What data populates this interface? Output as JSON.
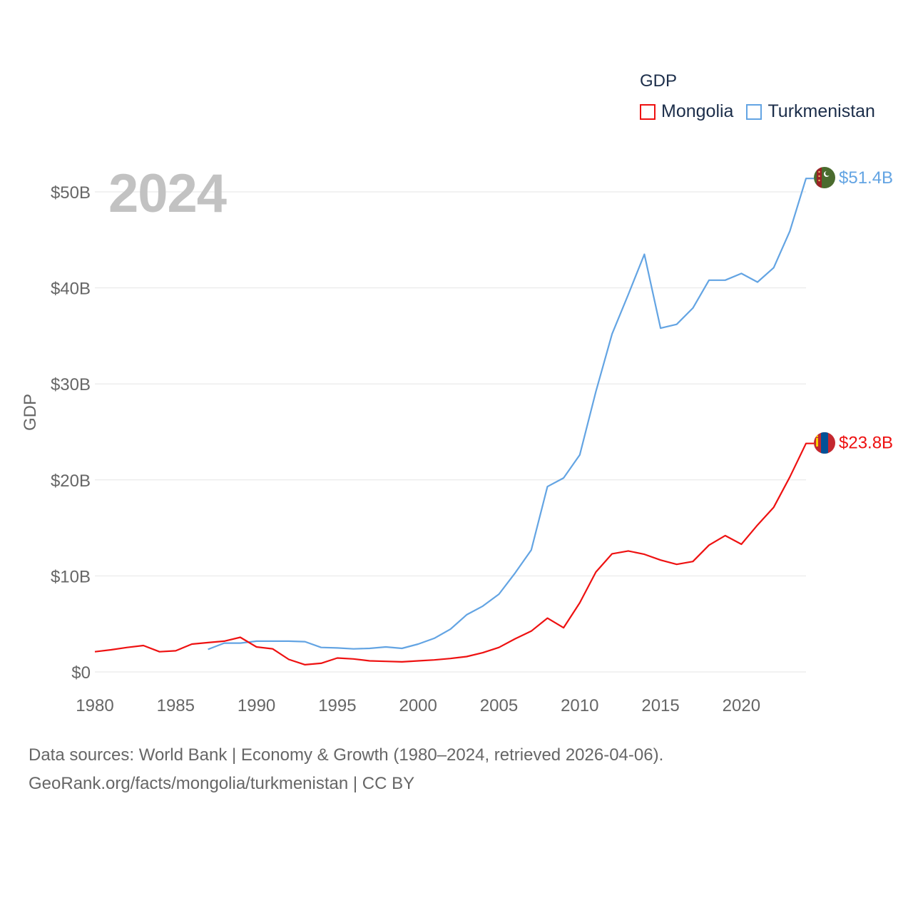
{
  "legend": {
    "title": "GDP",
    "items": [
      {
        "name": "Mongolia",
        "color": "#ee1111"
      },
      {
        "name": "Turkmenistan",
        "color": "#63a4e3"
      }
    ]
  },
  "year_label": "2024",
  "source": {
    "line1": "Data sources: World Bank | Economy & Growth (1980–2024, retrieved 2026-04-06).",
    "line2": "GeoRank.org/facts/mongolia/turkmenistan | CC BY"
  },
  "chart_data": {
    "type": "line",
    "title": "GDP",
    "xlabel": "",
    "ylabel": "GDP",
    "xlim": [
      1980,
      2024
    ],
    "ylim": [
      0,
      50
    ],
    "y_unit": "billion USD",
    "grid": true,
    "legend_position": "top-right",
    "x_ticks": [
      1980,
      1985,
      1990,
      1995,
      2000,
      2005,
      2010,
      2015,
      2020
    ],
    "x_tick_labels": [
      "1980",
      "1985",
      "1990",
      "1995",
      "2000",
      "2005",
      "2010",
      "2015",
      "2020"
    ],
    "y_ticks": [
      0,
      10,
      20,
      30,
      40,
      50
    ],
    "y_tick_labels": [
      "$0",
      "$10B",
      "$20B",
      "$30B",
      "$40B",
      "$50B"
    ],
    "series": [
      {
        "name": "Mongolia",
        "color": "#ee1111",
        "end_label": "$23.8B",
        "x": [
          1980,
          1981,
          1982,
          1983,
          1984,
          1985,
          1986,
          1987,
          1988,
          1989,
          1990,
          1991,
          1992,
          1993,
          1994,
          1995,
          1996,
          1997,
          1998,
          1999,
          2000,
          2001,
          2002,
          2003,
          2004,
          2005,
          2006,
          2007,
          2008,
          2009,
          2010,
          2011,
          2012,
          2013,
          2014,
          2015,
          2016,
          2017,
          2018,
          2019,
          2020,
          2021,
          2022,
          2023,
          2024
        ],
        "values": [
          2.1,
          2.3,
          2.55,
          2.75,
          2.1,
          2.2,
          2.9,
          3.05,
          3.2,
          3.6,
          2.6,
          2.4,
          1.3,
          0.75,
          0.9,
          1.45,
          1.35,
          1.15,
          1.1,
          1.05,
          1.15,
          1.25,
          1.4,
          1.6,
          2.0,
          2.55,
          3.45,
          4.25,
          5.6,
          4.6,
          7.2,
          10.4,
          12.3,
          12.6,
          12.25,
          11.65,
          11.2,
          11.5,
          13.2,
          14.2,
          13.3,
          15.3,
          17.15,
          20.3,
          23.8
        ]
      },
      {
        "name": "Turkmenistan",
        "color": "#63a4e3",
        "end_label": "$51.4B",
        "x": [
          1987,
          1988,
          1989,
          1990,
          1991,
          1992,
          1993,
          1994,
          1995,
          1996,
          1997,
          1998,
          1999,
          2000,
          2001,
          2002,
          2003,
          2004,
          2005,
          2006,
          2007,
          2008,
          2009,
          2010,
          2011,
          2012,
          2013,
          2014,
          2015,
          2016,
          2017,
          2018,
          2019,
          2020,
          2021,
          2022,
          2023,
          2024
        ],
        "values": [
          2.35,
          3.0,
          3.0,
          3.2,
          3.2,
          3.2,
          3.15,
          2.55,
          2.5,
          2.4,
          2.45,
          2.6,
          2.45,
          2.9,
          3.5,
          4.45,
          5.95,
          6.85,
          8.1,
          10.3,
          12.7,
          19.3,
          20.2,
          22.6,
          29.2,
          35.2,
          39.3,
          43.5,
          35.8,
          36.2,
          37.9,
          40.8,
          40.8,
          41.5,
          40.6,
          42.1,
          45.9,
          51.4
        ]
      }
    ]
  }
}
